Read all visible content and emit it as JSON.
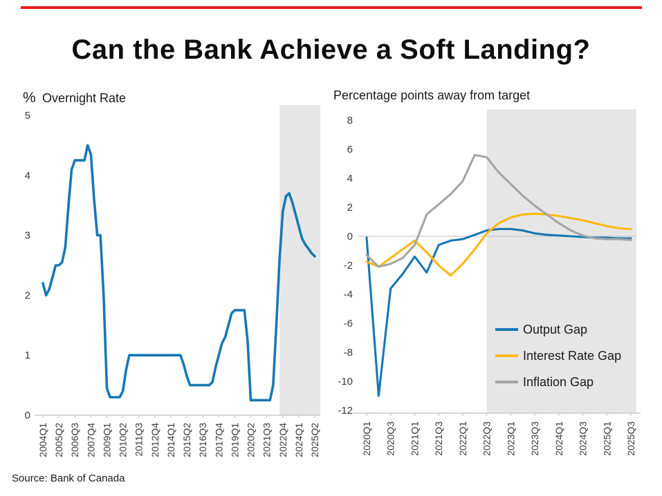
{
  "page": {
    "title": "Can the Bank Achieve a Soft Landing?",
    "source": "Source: Bank of Canada",
    "accent_color": "#ec1c24"
  },
  "chart_data": [
    {
      "type": "line",
      "title": "Overnight Rate",
      "ylabel": "%",
      "ylim": [
        0,
        5
      ],
      "y_ticks": [
        5,
        4,
        3,
        2,
        1,
        0
      ],
      "x_tick_labels": [
        "2004Q1",
        "2005Q2",
        "2006Q3",
        "2007Q4",
        "2009Q1",
        "2010Q2",
        "2011Q3",
        "2012Q4",
        "2014Q1",
        "2015Q2",
        "2016Q3",
        "2017Q4",
        "2019Q1",
        "2020Q2",
        "2021Q3",
        "2022Q4",
        "2024Q1",
        "2025Q2"
      ],
      "points_per_tick": 5,
      "forecast_from_index": 74,
      "forecast_band_color": "#e6e6e6",
      "series": [
        {
          "name": "Overnight Rate",
          "color": "#1878b4",
          "values": [
            2.2,
            2,
            2.1,
            2.3,
            2.5,
            2.5,
            2.55,
            2.8,
            3.5,
            4.1,
            4.25,
            4.25,
            4.25,
            4.25,
            4.5,
            4.35,
            3.6,
            3,
            3,
            2,
            0.45,
            0.3,
            0.3,
            0.3,
            0.3,
            0.4,
            0.75,
            1,
            1,
            1,
            1,
            1,
            1,
            1,
            1,
            1,
            1,
            1,
            1,
            1,
            1,
            1,
            1,
            1,
            0.85,
            0.65,
            0.5,
            0.5,
            0.5,
            0.5,
            0.5,
            0.5,
            0.5,
            0.55,
            0.8,
            1,
            1.2,
            1.3,
            1.5,
            1.7,
            1.75,
            1.75,
            1.75,
            1.75,
            1.25,
            0.25,
            0.25,
            0.25,
            0.25,
            0.25,
            0.25,
            0.25,
            0.5,
            1.5,
            2.6,
            3.4,
            3.65,
            3.7,
            3.55,
            3.35,
            3.15,
            2.95,
            2.85,
            2.78,
            2.7,
            2.65
          ]
        }
      ]
    },
    {
      "type": "line",
      "title": "Percentage points away from target",
      "ylim": [
        -12,
        8
      ],
      "y_ticks": [
        8,
        6,
        4,
        2,
        0,
        -2,
        -4,
        -6,
        -8,
        -10,
        -12
      ],
      "x_tick_labels": [
        "2020Q1",
        "2020Q3",
        "2021Q1",
        "2021Q3",
        "2022Q1",
        "2022Q3",
        "2023Q1",
        "2023Q3",
        "2024Q1",
        "2024Q3",
        "2025Q1",
        "2025Q3"
      ],
      "points_per_tick": 2,
      "forecast_from_index": 10,
      "forecast_band_color": "#e6e6e6",
      "zero_line": true,
      "series": [
        {
          "name": "Output Gap",
          "color": "#1878b4",
          "values": [
            -0.1,
            -11,
            -3.6,
            -2.6,
            -1.4,
            -2.5,
            -0.6,
            -0.3,
            -0.2,
            0.1,
            0.4,
            0.5,
            0.5,
            0.4,
            0.2,
            0.1,
            0.05,
            0,
            -0.05,
            -0.1,
            -0.1,
            -0.15,
            -0.15
          ]
        },
        {
          "name": "Interest Rate Gap",
          "color": "#fdb813",
          "values": [
            -1.75,
            -2.1,
            -1.5,
            -0.9,
            -0.3,
            -1.1,
            -2,
            -2.7,
            -1.9,
            -0.9,
            0.2,
            0.9,
            1.3,
            1.5,
            1.55,
            1.5,
            1.4,
            1.25,
            1.1,
            0.9,
            0.7,
            0.55,
            0.5
          ]
        },
        {
          "name": "Inflation Gap",
          "color": "#a5a5a5",
          "values": [
            -1.3,
            -2.1,
            -1.9,
            -1.5,
            -0.6,
            1.5,
            2.2,
            2.9,
            3.8,
            5.6,
            5.45,
            4.4,
            3.6,
            2.8,
            2.1,
            1.5,
            0.9,
            0.4,
            0.05,
            -0.15,
            -0.2,
            -0.2,
            -0.25
          ]
        }
      ]
    }
  ]
}
